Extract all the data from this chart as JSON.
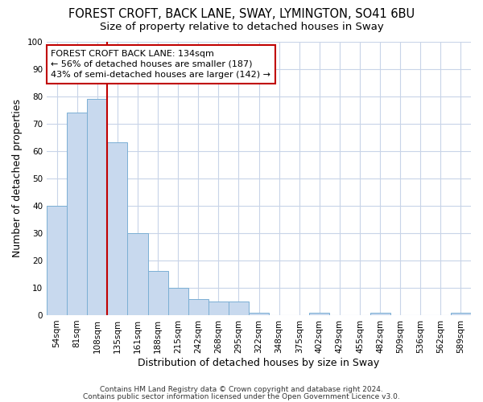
{
  "title": "FOREST CROFT, BACK LANE, SWAY, LYMINGTON, SO41 6BU",
  "subtitle": "Size of property relative to detached houses in Sway",
  "xlabel": "Distribution of detached houses by size in Sway",
  "ylabel": "Number of detached properties",
  "footer_line1": "Contains HM Land Registry data © Crown copyright and database right 2024.",
  "footer_line2": "Contains public sector information licensed under the Open Government Licence v3.0.",
  "categories": [
    "54sqm",
    "81sqm",
    "108sqm",
    "135sqm",
    "161sqm",
    "188sqm",
    "215sqm",
    "242sqm",
    "268sqm",
    "295sqm",
    "322sqm",
    "348sqm",
    "375sqm",
    "402sqm",
    "429sqm",
    "455sqm",
    "482sqm",
    "509sqm",
    "536sqm",
    "562sqm",
    "589sqm"
  ],
  "values": [
    40,
    74,
    79,
    63,
    30,
    16,
    10,
    6,
    5,
    5,
    1,
    0,
    0,
    1,
    0,
    0,
    1,
    0,
    0,
    0,
    1
  ],
  "bar_color": "#c8d9ee",
  "bar_edge_color": "#7bafd4",
  "grid_color": "#c8d4e8",
  "vline_color": "#c00000",
  "annotation_text": "FOREST CROFT BACK LANE: 134sqm\n← 56% of detached houses are smaller (187)\n43% of semi-detached houses are larger (142) →",
  "annotation_box_color": "#ffffff",
  "annotation_box_edge": "#c00000",
  "ylim": [
    0,
    100
  ],
  "title_fontsize": 10.5,
  "subtitle_fontsize": 9.5,
  "axis_label_fontsize": 9,
  "tick_fontsize": 7.5,
  "annotation_fontsize": 8,
  "footer_fontsize": 6.5
}
